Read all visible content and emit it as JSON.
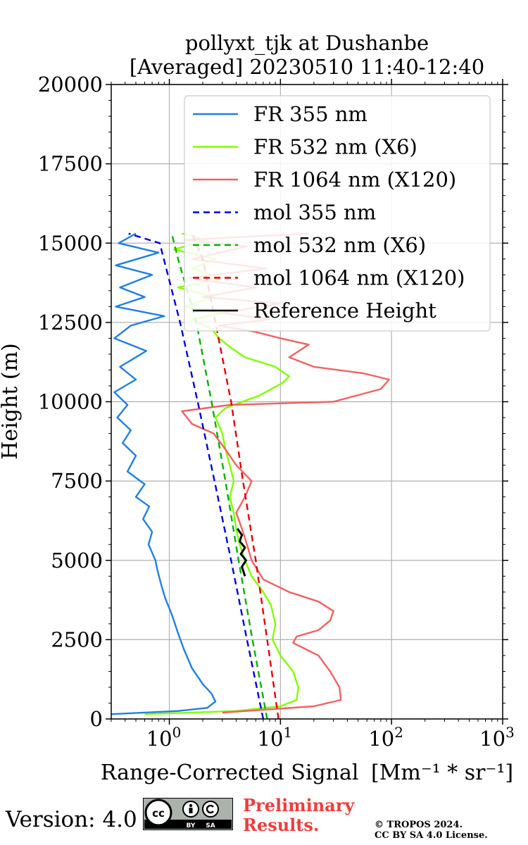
{
  "chart_data": {
    "type": "line",
    "title": [
      "pollyxt_tjk at Dushanbe",
      "[Averaged] 20230510 11:40-12:40"
    ],
    "xlabel": "Range-Corrected Signal",
    "xlabel_unit": "[Mm⁻¹ * sr⁻¹]",
    "ylabel": "Height (m)",
    "xscale": "log",
    "xlim": [
      0.3,
      1000
    ],
    "ylim": [
      0,
      20000
    ],
    "x_ticks": [
      1,
      10,
      100,
      1000
    ],
    "x_tick_labels": [
      {
        "base": "10",
        "exp": "0"
      },
      {
        "base": "10",
        "exp": "1"
      },
      {
        "base": "10",
        "exp": "2"
      },
      {
        "base": "10",
        "exp": "3"
      }
    ],
    "y_ticks": [
      0,
      2500,
      5000,
      7500,
      10000,
      12500,
      15000,
      17500,
      20000
    ],
    "grid": true,
    "legend_position": "upper-right",
    "series": [
      {
        "name": "FR 355 nm",
        "style": "solid",
        "color": "#1f7fe6",
        "points": [
          [
            0.3,
            150
          ],
          [
            1.2,
            250
          ],
          [
            2.2,
            350
          ],
          [
            2.6,
            550
          ],
          [
            2.4,
            800
          ],
          [
            2.0,
            1100
          ],
          [
            1.6,
            1600
          ],
          [
            1.35,
            2200
          ],
          [
            1.2,
            2700
          ],
          [
            1.05,
            3300
          ],
          [
            0.92,
            3800
          ],
          [
            0.85,
            4200
          ],
          [
            0.78,
            4700
          ],
          [
            0.75,
            5000
          ],
          [
            0.65,
            5500
          ],
          [
            0.7,
            5900
          ],
          [
            0.58,
            6300
          ],
          [
            0.66,
            6700
          ],
          [
            0.5,
            7000
          ],
          [
            0.6,
            7400
          ],
          [
            0.42,
            7800
          ],
          [
            0.5,
            8300
          ],
          [
            0.38,
            8700
          ],
          [
            0.45,
            9100
          ],
          [
            0.34,
            9500
          ],
          [
            0.42,
            9900
          ],
          [
            0.32,
            10300
          ],
          [
            0.5,
            10700
          ],
          [
            0.36,
            11100
          ],
          [
            0.62,
            11600
          ],
          [
            0.32,
            12000
          ],
          [
            0.45,
            12400
          ],
          [
            0.9,
            12700
          ],
          [
            0.33,
            13000
          ],
          [
            0.6,
            13300
          ],
          [
            0.36,
            13600
          ],
          [
            0.7,
            14000
          ],
          [
            0.33,
            14300
          ],
          [
            0.8,
            14700
          ],
          [
            0.35,
            15000
          ],
          [
            0.5,
            15300
          ]
        ]
      },
      {
        "name": "FR 532 nm (X6)",
        "style": "solid",
        "color": "#80ff00",
        "points": [
          [
            0.6,
            150
          ],
          [
            4.0,
            250
          ],
          [
            10,
            400
          ],
          [
            14,
            600
          ],
          [
            14.5,
            1000
          ],
          [
            13,
            1500
          ],
          [
            10,
            2000
          ],
          [
            8.5,
            2500
          ],
          [
            9.0,
            3000
          ],
          [
            8.2,
            3600
          ],
          [
            7.0,
            4000
          ],
          [
            5.5,
            4500
          ],
          [
            4.8,
            5000
          ],
          [
            4.3,
            5500
          ],
          [
            4.0,
            6000
          ],
          [
            3.8,
            6500
          ],
          [
            3.5,
            7000
          ],
          [
            3.8,
            7500
          ],
          [
            3.5,
            8000
          ],
          [
            3.2,
            8500
          ],
          [
            3.0,
            9000
          ],
          [
            2.6,
            9500
          ],
          [
            3.2,
            9800
          ],
          [
            6.5,
            10200
          ],
          [
            10.5,
            10600
          ],
          [
            12,
            10800
          ],
          [
            9.0,
            11100
          ],
          [
            4.8,
            11400
          ],
          [
            3.6,
            11700
          ],
          [
            2.8,
            12000
          ],
          [
            2.4,
            12300
          ],
          [
            1.6,
            12600
          ],
          [
            3.0,
            12800
          ],
          [
            1.4,
            13000
          ],
          [
            2.5,
            13300
          ],
          [
            1.2,
            13600
          ],
          [
            3.0,
            13900
          ],
          [
            1.6,
            14200
          ],
          [
            2.6,
            14500
          ],
          [
            1.1,
            14800
          ],
          [
            2.2,
            15100
          ],
          [
            1.3,
            15300
          ]
        ]
      },
      {
        "name": "FR 1064 nm (X120)",
        "style": "solid",
        "color": "#f26161",
        "points": [
          [
            3.0,
            200
          ],
          [
            20,
            400
          ],
          [
            35,
            600
          ],
          [
            34,
            1000
          ],
          [
            28,
            1500
          ],
          [
            22,
            2000
          ],
          [
            13,
            2400
          ],
          [
            14,
            2600
          ],
          [
            22,
            2800
          ],
          [
            28,
            3100
          ],
          [
            30,
            3400
          ],
          [
            22,
            3700
          ],
          [
            12,
            4000
          ],
          [
            7.0,
            4400
          ],
          [
            5.5,
            5000
          ],
          [
            5.0,
            5500
          ],
          [
            4.5,
            6000
          ],
          [
            4.0,
            6500
          ],
          [
            4.8,
            7000
          ],
          [
            5.5,
            7500
          ],
          [
            4.0,
            8000
          ],
          [
            3.2,
            8500
          ],
          [
            2.5,
            9000
          ],
          [
            1.6,
            9300
          ],
          [
            1.3,
            9700
          ],
          [
            3.5,
            9900
          ],
          [
            30,
            10000
          ],
          [
            80,
            10400
          ],
          [
            95,
            10700
          ],
          [
            55,
            10900
          ],
          [
            20,
            11100
          ],
          [
            12,
            11400
          ],
          [
            18,
            11800
          ],
          [
            10,
            12000
          ],
          [
            6.0,
            12200
          ],
          [
            2.8,
            12400
          ],
          [
            8.0,
            12600
          ],
          [
            3.0,
            12800
          ],
          [
            10,
            13100
          ],
          [
            2.0,
            13300
          ],
          [
            6.0,
            13600
          ],
          [
            1.5,
            13900
          ],
          [
            7.5,
            14200
          ],
          [
            1.6,
            14500
          ],
          [
            5.0,
            14900
          ],
          [
            1.4,
            15100
          ],
          [
            18,
            15300
          ]
        ]
      },
      {
        "name": "mol 355 nm",
        "style": "dashed",
        "color": "#0000e6",
        "points": [
          [
            7.0,
            0
          ],
          [
            5.0,
            2500
          ],
          [
            3.6,
            5000
          ],
          [
            2.55,
            7500
          ],
          [
            1.8,
            10000
          ],
          [
            1.25,
            12500
          ],
          [
            0.82,
            15000
          ],
          [
            0.43,
            15300
          ]
        ]
      },
      {
        "name": "mol 532 nm (X6)",
        "style": "dashed",
        "color": "#00b400",
        "points": [
          [
            7.6,
            0
          ],
          [
            5.6,
            2500
          ],
          [
            4.2,
            5000
          ],
          [
            3.2,
            7500
          ],
          [
            2.4,
            10000
          ],
          [
            1.75,
            12500
          ],
          [
            1.2,
            14500
          ],
          [
            1.05,
            15300
          ]
        ]
      },
      {
        "name": "mol 1064 nm (X120)",
        "style": "dashed",
        "color": "#e60000",
        "points": [
          [
            9.6,
            0
          ],
          [
            7.6,
            2500
          ],
          [
            6.0,
            5000
          ],
          [
            4.6,
            7500
          ],
          [
            3.6,
            10000
          ],
          [
            2.6,
            12500
          ],
          [
            2.0,
            14500
          ],
          [
            1.6,
            15300
          ]
        ]
      },
      {
        "name": "Reference Height",
        "style": "solid",
        "color": "#000000",
        "points": [
          [
            4.8,
            4500
          ],
          [
            4.5,
            4800
          ],
          [
            4.9,
            5000
          ],
          [
            4.4,
            5200
          ],
          [
            4.8,
            5400
          ],
          [
            4.3,
            5600
          ],
          [
            4.5,
            5800
          ],
          [
            4.1,
            6000
          ]
        ]
      }
    ]
  },
  "footer": {
    "version": "Version: 4.0",
    "cc_by": "BY",
    "cc_sa": "SA",
    "preliminary_line1": "Preliminary",
    "preliminary_line2": "Results.",
    "copyright_line1": "© TROPOS 2024.",
    "copyright_line2": "CC BY SA 4.0 License."
  }
}
